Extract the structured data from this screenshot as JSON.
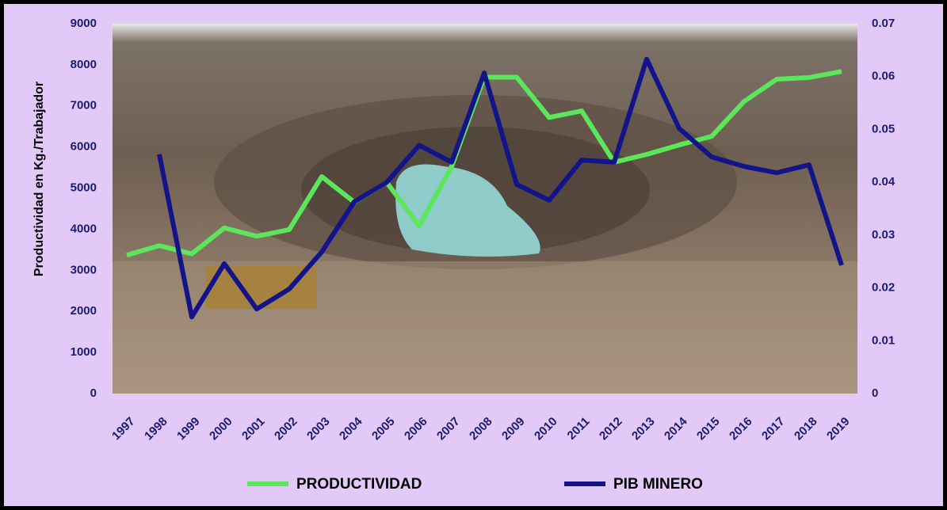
{
  "chart_data": {
    "type": "line",
    "y_label": "Productividad  en Kg./Trabajador",
    "categories": [
      "1997",
      "1998",
      "1999",
      "2000",
      "2001",
      "2002",
      "2003",
      "2004",
      "2005",
      "2006",
      "2007",
      "2008",
      "2009",
      "2010",
      "2011",
      "2012",
      "2013",
      "2014",
      "2015",
      "2016",
      "2017",
      "2018",
      "2019"
    ],
    "series": [
      {
        "name": "PRODUCTIVIDAD",
        "color": "#5ce65c",
        "values": [
          3370,
          3600,
          3400,
          4030,
          3830,
          3990,
          5280,
          4660,
          5140,
          4080,
          5530,
          7700,
          7700,
          6720,
          6880,
          5630,
          5820,
          6050,
          6260,
          7110,
          7650,
          7690,
          7840
        ]
      },
      {
        "name": "PIB MINERO",
        "color": "#14148a",
        "axis": "y2",
        "values": [
          null,
          0.0453,
          0.0145,
          0.0246,
          0.016,
          0.0198,
          0.0268,
          0.0363,
          0.04,
          0.047,
          0.0438,
          0.0607,
          0.0396,
          0.0366,
          0.0442,
          0.0438,
          0.0633,
          0.0502,
          0.0448,
          0.043,
          0.0418,
          0.0433,
          0.0243
        ]
      }
    ],
    "ylim": [
      0,
      9000
    ],
    "yticks": [
      0,
      1000,
      2000,
      3000,
      4000,
      5000,
      6000,
      7000,
      8000,
      9000
    ],
    "y2lim": [
      0,
      0.07
    ],
    "y2ticks": [
      0,
      0.01,
      0.02,
      0.03,
      0.04,
      0.05,
      0.06,
      0.07
    ],
    "legend": "bottom"
  }
}
